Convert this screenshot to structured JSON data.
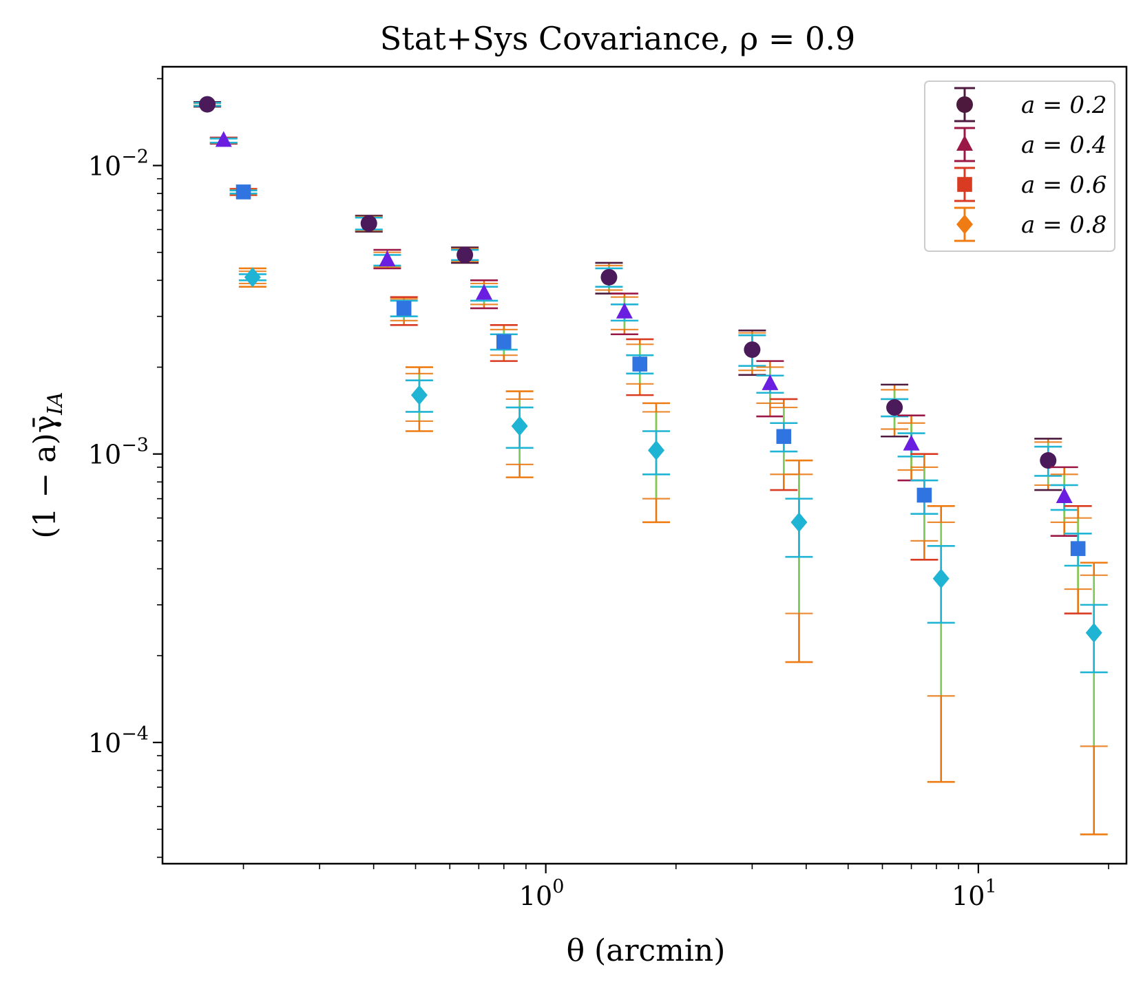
{
  "chart_data": {
    "type": "scatter",
    "title": "Stat+Sys Covariance, ρ = 0.9",
    "xlabel": "θ (arcmin)",
    "ylabel": "(1 − a)γ̄",
    "ylabel_sub": "IA",
    "xscale": "log",
    "yscale": "log",
    "xlim": [
      0.13,
      22
    ],
    "ylim": [
      3.8e-05,
      0.022
    ],
    "grid": false,
    "legend_position": "top-right",
    "x_ticks": [
      {
        "value": 1,
        "base": "10",
        "exp": "0"
      },
      {
        "value": 10,
        "base": "10",
        "exp": "1"
      }
    ],
    "y_ticks": [
      {
        "value": 0.01,
        "base": "10",
        "exp": "−2"
      },
      {
        "value": 0.001,
        "base": "10",
        "exp": "−3"
      },
      {
        "value": 0.0001,
        "base": "10",
        "exp": "−4"
      }
    ],
    "series": [
      {
        "name": "a = 0.2",
        "marker": "circle",
        "color": "#4d1a3d",
        "x": [
          0.165,
          0.39,
          0.65,
          1.4,
          3.0,
          6.4,
          14.5
        ],
        "y": [
          0.0163,
          0.0063,
          0.0049,
          0.0041,
          0.0023,
          0.00145,
          0.00095
        ],
        "errors": [
          {
            "inner": [
              0.0165,
              0.0161
            ],
            "outer": [
              0.0166,
              0.016
            ],
            "mid": [
              0.01645,
              0.01615
            ]
          },
          {
            "inner": [
              0.0066,
              0.006
            ],
            "outer": [
              0.0067,
              0.0059
            ],
            "mid": [
              0.00665,
              0.00595
            ]
          },
          {
            "inner": [
              0.0051,
              0.0047
            ],
            "outer": [
              0.0052,
              0.0046
            ],
            "mid": [
              0.00515,
              0.00465
            ]
          },
          {
            "inner": [
              0.0044,
              0.0038
            ],
            "outer": [
              0.0046,
              0.0036
            ],
            "mid": [
              0.0045,
              0.0037
            ]
          },
          {
            "inner": [
              0.00258,
              0.00202
            ],
            "outer": [
              0.00268,
              0.00188
            ],
            "mid": [
              0.00263,
              0.00195
            ]
          },
          {
            "inner": [
              0.00155,
              0.00135
            ],
            "outer": [
              0.00174,
              0.00115
            ],
            "mid": [
              0.00167,
              0.00122
            ]
          },
          {
            "inner": [
              0.00106,
              0.00084
            ],
            "outer": [
              0.00113,
              0.00075
            ],
            "mid": [
              0.0011,
              0.00078
            ]
          }
        ]
      },
      {
        "name": "a = 0.4",
        "marker": "triangle",
        "color": "#9b1746",
        "x": [
          0.18,
          0.43,
          0.72,
          1.52,
          3.3,
          7.0,
          15.8
        ],
        "y": [
          0.0122,
          0.0047,
          0.0036,
          0.0031,
          0.00175,
          0.00108,
          0.00071
        ],
        "errors": [
          {
            "inner": [
              0.0124,
              0.012
            ],
            "outer": [
              0.0125,
              0.0119
            ],
            "mid": [
              0.01245,
              0.01195
            ]
          },
          {
            "inner": [
              0.0049,
              0.0045
            ],
            "outer": [
              0.0051,
              0.0044
            ],
            "mid": [
              0.005,
              0.00445
            ]
          },
          {
            "inner": [
              0.0038,
              0.0034
            ],
            "outer": [
              0.004,
              0.0032
            ],
            "mid": [
              0.0039,
              0.0033
            ]
          },
          {
            "inner": [
              0.0033,
              0.0029
            ],
            "outer": [
              0.0036,
              0.0026
            ],
            "mid": [
              0.0035,
              0.0027
            ]
          },
          {
            "inner": [
              0.00187,
              0.00163
            ],
            "outer": [
              0.0021,
              0.00135
            ],
            "mid": [
              0.002,
              0.0015
            ]
          },
          {
            "inner": [
              0.00118,
              0.00098
            ],
            "outer": [
              0.00136,
              0.00081
            ],
            "mid": [
              0.00128,
              0.00088
            ]
          },
          {
            "inner": [
              0.00078,
              0.00064
            ],
            "outer": [
              0.0009,
              0.00052
            ],
            "mid": [
              0.00085,
              0.00058
            ]
          }
        ]
      },
      {
        "name": "a = 0.6",
        "marker": "square",
        "color": "#d93a22",
        "x": [
          0.2,
          0.47,
          0.8,
          1.65,
          3.55,
          7.5,
          17.0
        ],
        "y": [
          0.0081,
          0.0032,
          0.00245,
          0.00205,
          0.00115,
          0.00072,
          0.00047
        ],
        "errors": [
          {
            "inner": [
              0.0082,
              0.008
            ],
            "outer": [
              0.0083,
              0.0079
            ],
            "mid": [
              0.00825,
              0.00795
            ]
          },
          {
            "inner": [
              0.0034,
              0.003
            ],
            "outer": [
              0.0035,
              0.0028
            ],
            "mid": [
              0.00345,
              0.0029
            ]
          },
          {
            "inner": [
              0.0026,
              0.0023
            ],
            "outer": [
              0.0028,
              0.0021
            ],
            "mid": [
              0.0027,
              0.0022
            ]
          },
          {
            "inner": [
              0.0022,
              0.0019
            ],
            "outer": [
              0.0025,
              0.0016
            ],
            "mid": [
              0.0024,
              0.00175
            ]
          },
          {
            "inner": [
              0.00128,
              0.00102
            ],
            "outer": [
              0.00155,
              0.00075
            ],
            "mid": [
              0.00145,
              0.00085
            ]
          },
          {
            "inner": [
              0.00081,
              0.00062
            ],
            "outer": [
              0.001,
              0.00043
            ],
            "mid": [
              0.0009,
              0.0005
            ]
          },
          {
            "inner": [
              0.00053,
              0.00041
            ],
            "outer": [
              0.00066,
              0.00028
            ],
            "mid": [
              0.0006,
              0.00034
            ]
          }
        ]
      },
      {
        "name": "a = 0.8",
        "marker": "diamond",
        "color": "#ee7c12",
        "x": [
          0.21,
          0.51,
          0.87,
          1.8,
          3.85,
          8.2,
          18.5
        ],
        "y": [
          0.0041,
          0.0016,
          0.00125,
          0.00103,
          0.00058,
          0.00037,
          0.00024
        ],
        "errors": [
          {
            "inner": [
              0.0042,
              0.004
            ],
            "outer": [
              0.0044,
              0.0038
            ],
            "mid": [
              0.0043,
              0.0039
            ]
          },
          {
            "inner": [
              0.0018,
              0.0014
            ],
            "outer": [
              0.002,
              0.0012
            ],
            "mid": [
              0.0019,
              0.0013
            ]
          },
          {
            "inner": [
              0.00145,
              0.00105
            ],
            "outer": [
              0.00165,
              0.00083
            ],
            "mid": [
              0.00155,
              0.00092
            ]
          },
          {
            "inner": [
              0.0012,
              0.00085
            ],
            "outer": [
              0.0015,
              0.00058
            ],
            "mid": [
              0.0014,
              0.0007
            ]
          },
          {
            "inner": [
              0.0007,
              0.00044
            ],
            "outer": [
              0.00095,
              0.00019
            ],
            "mid": [
              0.00085,
              0.00028
            ]
          },
          {
            "inner": [
              0.00048,
              0.00026
            ],
            "outer": [
              0.00066,
              7.3e-05
            ],
            "mid": [
              0.00058,
              0.000145
            ]
          },
          {
            "inner": [
              0.0003,
              0.000175
            ],
            "outer": [
              0.00042,
              4.8e-05
            ],
            "mid": [
              0.00038,
              9.7e-05
            ]
          }
        ]
      }
    ],
    "palette": {
      "outer_bar": "#e8760f",
      "mid_bar": "#7ecb5b",
      "inner_bar": "#1fb4d4",
      "marker_fill": [
        "#4a1a5a",
        "#6a1ee0",
        "#2f74e0",
        "#1fb4d4"
      ]
    }
  }
}
